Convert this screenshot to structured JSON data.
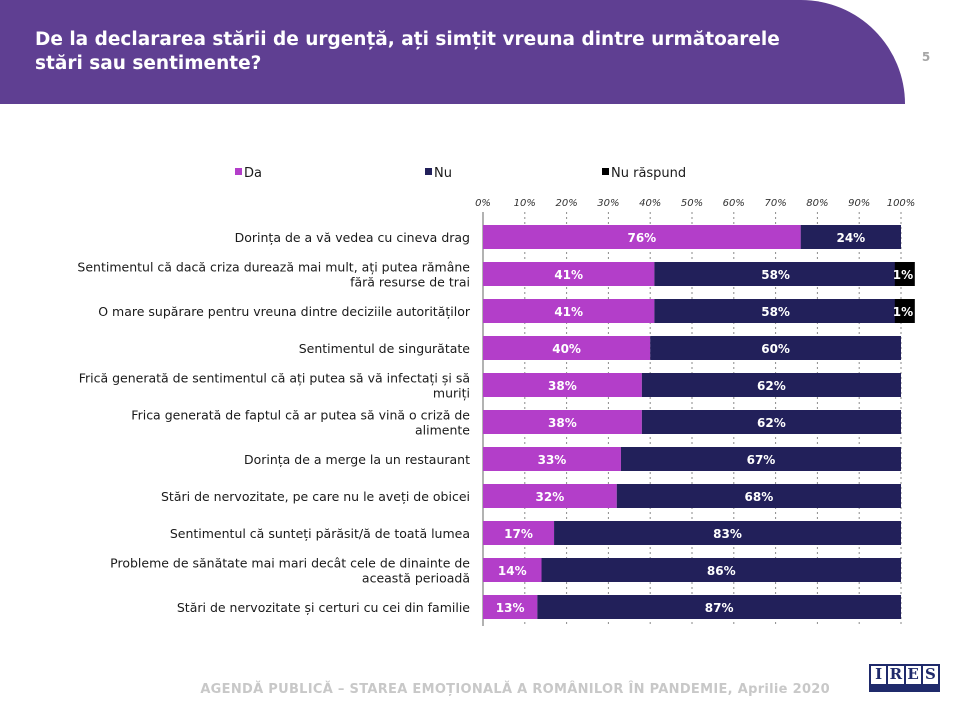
{
  "header": {
    "title": "De la declararea stării de urgență, ați simțit vreuna dintre următoarele stări sau sentimente?",
    "page_number": "5"
  },
  "footer": {
    "text": "AGENDĂ PUBLICĂ – STAREA EMOȚIONALĂ A ROMÂNILOR ÎN PANDEMIE, Aprilie 2020"
  },
  "logo": {
    "letters": [
      "I",
      "R",
      "E",
      "S"
    ]
  },
  "colors": {
    "da": "#b33ec9",
    "nu": "#22205a",
    "nu_raspund": "#000000",
    "header": "#5f3f92"
  },
  "chart_data": {
    "type": "bar",
    "orientation": "horizontal",
    "stacked": true,
    "title": "",
    "xlim": [
      0,
      100
    ],
    "x_ticks": [
      "0%",
      "10%",
      "20%",
      "30%",
      "40%",
      "50%",
      "60%",
      "70%",
      "80%",
      "90%",
      "100%"
    ],
    "legend_position": "top",
    "categories": [
      [
        "Dorința de a vă vedea cu cineva drag"
      ],
      [
        "Sentimentul că dacă criza durează mai mult, ați putea rămâne",
        "fără resurse de trai"
      ],
      [
        "O mare supărare pentru vreuna dintre deciziile autorităților"
      ],
      [
        "Sentimentul de singurătate"
      ],
      [
        "Frică generată de sentimentul că ați putea să vă infectați și să",
        "muriți"
      ],
      [
        "Frica generată de faptul că ar putea să vină o criză de",
        "alimente"
      ],
      [
        "Dorința de a merge la un restaurant"
      ],
      [
        "Stări de nervozitate, pe care nu le aveți de obicei"
      ],
      [
        "Sentimentul că sunteți părăsit/ă de toată lumea"
      ],
      [
        "Probleme de sănătate mai mari decât cele de dinainte de",
        "această perioadă"
      ],
      [
        "Stări de nervozitate și certuri cu cei din familie"
      ]
    ],
    "series": [
      {
        "name": "Da",
        "color": "#b33ec9",
        "values": [
          76,
          41,
          41,
          40,
          38,
          38,
          33,
          32,
          17,
          14,
          13
        ],
        "labels": [
          "76%",
          "41%",
          "41%",
          "40%",
          "38%",
          "38%",
          "33%",
          "32%",
          "17%",
          "14%",
          "13%"
        ]
      },
      {
        "name": "Nu",
        "color": "#22205a",
        "values": [
          24,
          58,
          58,
          60,
          62,
          62,
          67,
          68,
          83,
          86,
          87
        ],
        "labels": [
          "24%",
          "58%",
          "58%",
          "60%",
          "62%",
          "62%",
          "67%",
          "68%",
          "83%",
          "86%",
          "87%"
        ]
      },
      {
        "name": "Nu răspund",
        "color": "#000000",
        "values": [
          0,
          1,
          1,
          0,
          0,
          0,
          0,
          0,
          0,
          0,
          0
        ],
        "labels": [
          "",
          "1%",
          "1%",
          "",
          "",
          "",
          "",
          "",
          "",
          "",
          ""
        ]
      }
    ]
  }
}
